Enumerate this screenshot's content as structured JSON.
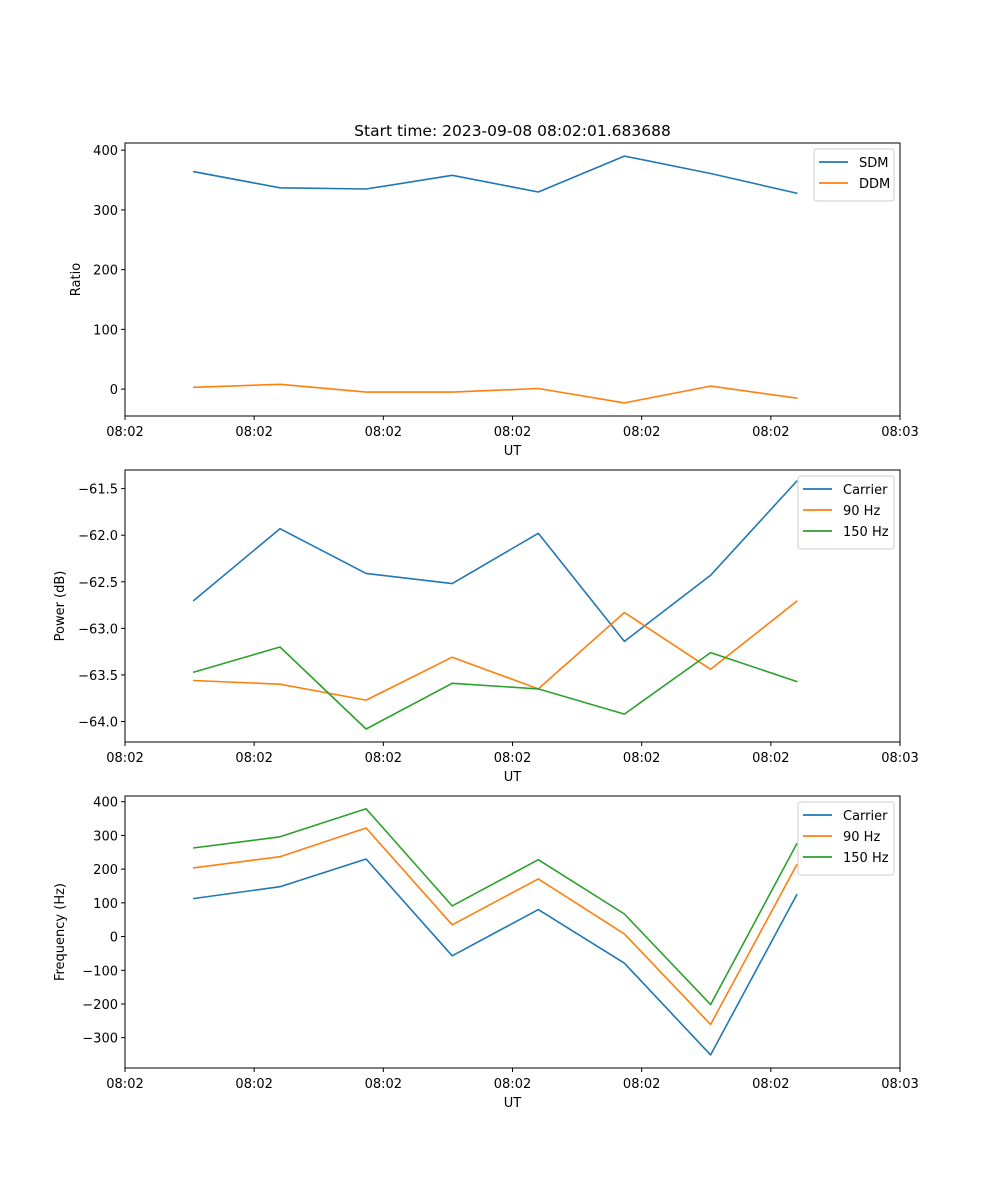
{
  "chart_data": [
    {
      "type": "line",
      "title": "Start time: 2023-09-08 08:02:01.683688",
      "xlabel": "UT",
      "ylabel": "Ratio",
      "x": [
        1,
        2,
        3,
        4,
        5,
        6,
        7,
        8
      ],
      "xlim": [
        0.2,
        9.2
      ],
      "xticks": [
        0.2,
        1.7,
        3.2,
        4.7,
        6.2,
        7.7,
        9.2
      ],
      "xtick_labels": [
        "08:02",
        "08:02",
        "08:02",
        "08:02",
        "08:02",
        "08:02",
        "08:03"
      ],
      "ylim": [
        -45,
        412
      ],
      "yticks": [
        0,
        100,
        200,
        300,
        400
      ],
      "ytick_labels": [
        "0",
        "100",
        "200",
        "300",
        "400"
      ],
      "legend": "top-right",
      "grid": false,
      "series": [
        {
          "name": "SDM",
          "color": "#1f77b4",
          "values": [
            364,
            337,
            335,
            358,
            330,
            390,
            361,
            328
          ]
        },
        {
          "name": "DDM",
          "color": "#ff7f0e",
          "values": [
            3,
            8,
            -5,
            -5,
            1,
            -23,
            5,
            -15
          ]
        }
      ]
    },
    {
      "type": "line",
      "title": "",
      "xlabel": "UT",
      "ylabel": "Power (dB)",
      "x": [
        1,
        2,
        3,
        4,
        5,
        6,
        7,
        8
      ],
      "xlim": [
        0.2,
        9.2
      ],
      "xticks": [
        0.2,
        1.7,
        3.2,
        4.7,
        6.2,
        7.7,
        9.2
      ],
      "xtick_labels": [
        "08:02",
        "08:02",
        "08:02",
        "08:02",
        "08:02",
        "08:02",
        "08:03"
      ],
      "ylim": [
        -64.22,
        -61.3
      ],
      "yticks": [
        -64.0,
        -63.5,
        -63.0,
        -62.5,
        -62.0,
        -61.5
      ],
      "ytick_labels": [
        "−64.0",
        "−63.5",
        "−63.0",
        "−62.5",
        "−62.0",
        "−61.5"
      ],
      "legend": "top-right",
      "grid": false,
      "series": [
        {
          "name": "Carrier",
          "color": "#1f77b4",
          "values": [
            -62.7,
            -61.93,
            -62.41,
            -62.52,
            -61.98,
            -63.14,
            -62.43,
            -61.42
          ]
        },
        {
          "name": "90 Hz",
          "color": "#ff7f0e",
          "values": [
            -63.56,
            -63.6,
            -63.77,
            -63.31,
            -63.65,
            -62.83,
            -63.44,
            -62.71
          ]
        },
        {
          "name": "150 Hz",
          "color": "#2ca02c",
          "values": [
            -63.47,
            -63.2,
            -64.08,
            -63.59,
            -63.65,
            -63.92,
            -63.26,
            -63.57
          ]
        }
      ]
    },
    {
      "type": "line",
      "title": "",
      "xlabel": "UT",
      "ylabel": "Frequency (Hz)",
      "x": [
        1,
        2,
        3,
        4,
        5,
        6,
        7,
        8
      ],
      "xlim": [
        0.2,
        9.2
      ],
      "xticks": [
        0.2,
        1.7,
        3.2,
        4.7,
        6.2,
        7.7,
        9.2
      ],
      "xtick_labels": [
        "08:02",
        "08:02",
        "08:02",
        "08:02",
        "08:02",
        "08:02",
        "08:03"
      ],
      "ylim": [
        -390,
        417
      ],
      "yticks": [
        -300,
        -200,
        -100,
        0,
        100,
        200,
        300,
        400
      ],
      "ytick_labels": [
        "−300",
        "−200",
        "−100",
        "0",
        "100",
        "200",
        "300",
        "400"
      ],
      "legend": "top-right",
      "grid": false,
      "series": [
        {
          "name": "Carrier",
          "color": "#1f77b4",
          "values": [
            113,
            148,
            230,
            -57,
            80,
            -79,
            -351,
            124
          ]
        },
        {
          "name": "90 Hz",
          "color": "#ff7f0e",
          "values": [
            204,
            237,
            322,
            35,
            171,
            8,
            -261,
            213
          ]
        },
        {
          "name": "150 Hz",
          "color": "#2ca02c",
          "values": [
            263,
            296,
            379,
            91,
            228,
            67,
            -202,
            275
          ]
        }
      ]
    }
  ]
}
